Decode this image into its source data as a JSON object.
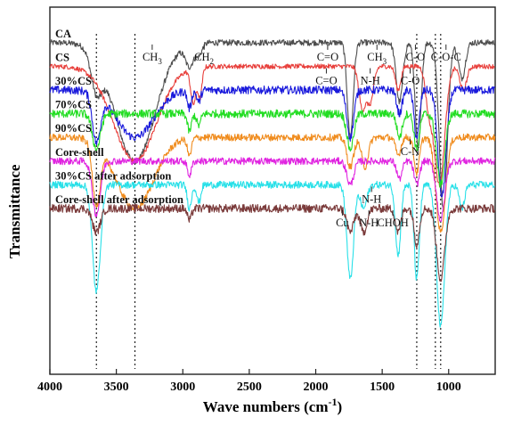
{
  "chart_data": {
    "type": "line",
    "xlabel": "Wave numbers (cm",
    "xlabel_sup": "-1",
    "xlabel_end": ")",
    "ylabel": "Transmittance",
    "xlim": [
      4000,
      650
    ],
    "x_reversed": true,
    "x_ticks": [
      4000,
      3500,
      3000,
      2500,
      2000,
      1500,
      1000
    ],
    "y_ticks_shown": false,
    "reference_lines": [
      3650,
      3360,
      1240,
      1100,
      1060
    ],
    "series": [
      {
        "name": "CA",
        "color": "#4d4d4d",
        "baseline": 11.0,
        "noise": 0.25,
        "bands": [
          [
            3650,
            -3.0,
            40
          ],
          [
            3360,
            -10.0,
            150
          ],
          [
            2950,
            -1.8,
            30
          ],
          [
            2880,
            -1.0,
            25
          ],
          [
            1740,
            -8.0,
            22
          ],
          [
            1370,
            -5.0,
            25
          ],
          [
            1230,
            -9.0,
            22
          ],
          [
            1040,
            -14.0,
            30
          ],
          [
            900,
            -3.0,
            25
          ]
        ]
      },
      {
        "name": "CS",
        "color": "#e8403c",
        "baseline": 9.0,
        "noise": 0.2,
        "bands": [
          [
            3360,
            -8.0,
            160
          ],
          [
            2920,
            -3.0,
            20
          ],
          [
            2870,
            -2.5,
            15
          ],
          [
            1650,
            -3.5,
            25
          ],
          [
            1590,
            -3.0,
            25
          ],
          [
            1380,
            -2.0,
            20
          ],
          [
            1150,
            -3.0,
            25
          ],
          [
            1070,
            -10.0,
            40
          ],
          [
            890,
            -2.0,
            25
          ]
        ]
      },
      {
        "name": "30%CS",
        "color": "#1a1adc",
        "baseline": 7.0,
        "noise": 0.35,
        "bands": [
          [
            3650,
            -4.0,
            30
          ],
          [
            3360,
            -4.0,
            140
          ],
          [
            2950,
            -1.5,
            15
          ],
          [
            2880,
            -1.0,
            15
          ],
          [
            1740,
            -4.0,
            25
          ],
          [
            1370,
            -2.0,
            20
          ],
          [
            1240,
            -4.0,
            20
          ],
          [
            1050,
            -9.0,
            30
          ]
        ]
      },
      {
        "name": "70%CS",
        "color": "#22dd22",
        "baseline": 5.0,
        "noise": 0.35,
        "bands": [
          [
            3650,
            -3.0,
            30
          ],
          [
            2950,
            -1.5,
            15
          ],
          [
            2880,
            -1.0,
            15
          ],
          [
            1740,
            -3.0,
            25
          ],
          [
            1370,
            -2.0,
            20
          ],
          [
            1240,
            -3.0,
            20
          ],
          [
            1060,
            -6.0,
            30
          ]
        ]
      },
      {
        "name": "90%CS",
        "color": "#f08c1e",
        "baseline": 3.0,
        "noise": 0.3,
        "bands": [
          [
            3650,
            -5.0,
            30
          ],
          [
            3360,
            -6.0,
            140
          ],
          [
            2950,
            -1.5,
            15
          ],
          [
            1740,
            -2.5,
            25
          ],
          [
            1630,
            -2.5,
            25
          ],
          [
            1380,
            -1.5,
            20
          ],
          [
            1240,
            -3.0,
            20
          ],
          [
            1060,
            -8.0,
            35
          ]
        ]
      },
      {
        "name": "Core-shell",
        "color": "#e024e0",
        "baseline": 1.0,
        "noise": 0.3,
        "bands": [
          [
            3650,
            -4.5,
            30
          ],
          [
            2950,
            -1.2,
            15
          ],
          [
            1740,
            -2.0,
            25
          ],
          [
            1370,
            -1.5,
            20
          ],
          [
            1240,
            -2.0,
            20
          ],
          [
            1060,
            -5.0,
            30
          ]
        ]
      },
      {
        "name": "30%CS after adsorption",
        "color": "#28e0e8",
        "baseline": -1.0,
        "noise": 0.3,
        "bands": [
          [
            3650,
            -9.0,
            30
          ],
          [
            2950,
            -2.0,
            15
          ],
          [
            2880,
            -1.5,
            15
          ],
          [
            1740,
            -8.0,
            25
          ],
          [
            1640,
            -2.0,
            25
          ],
          [
            1380,
            -6.0,
            20
          ],
          [
            1240,
            -8.0,
            20
          ],
          [
            1060,
            -12.0,
            30
          ],
          [
            900,
            -2.0,
            20
          ]
        ]
      },
      {
        "name": "Core-shell after adsorption",
        "color": "#7a3a3a",
        "baseline": -3.0,
        "noise": 0.35,
        "bands": [
          [
            3650,
            -2.0,
            30
          ],
          [
            2950,
            -1.0,
            15
          ],
          [
            1740,
            -2.0,
            25
          ],
          [
            1640,
            -2.0,
            25
          ],
          [
            1380,
            -2.0,
            20
          ],
          [
            1240,
            -3.0,
            20
          ],
          [
            1060,
            -6.0,
            30
          ]
        ]
      }
    ],
    "annotations": [
      {
        "text": "CH",
        "sub": "3",
        "x": 3230,
        "series": "CA"
      },
      {
        "text": "CH",
        "sub": "2",
        "x": 2840,
        "series": "CA"
      },
      {
        "text": "C=O",
        "sub": "",
        "x": 1910,
        "series": "CA"
      },
      {
        "text": "CH",
        "sub": "3",
        "x": 1540,
        "series": "CA"
      },
      {
        "text": "C-O",
        "sub": "",
        "x": 1250,
        "series": "CA"
      },
      {
        "text": "C-O-C",
        "sub": "",
        "x": 1020,
        "series": "CA"
      },
      {
        "text": "C=O",
        "sub": "",
        "x": 1920,
        "series": "CS"
      },
      {
        "text": "N-H",
        "sub": "",
        "x": 1590,
        "series": "CS"
      },
      {
        "text": "C-O",
        "sub": "",
        "x": 1290,
        "series": "CS"
      },
      {
        "text": "C-N",
        "sub": "",
        "x": 1290,
        "series": "90%CS"
      },
      {
        "text": "N-H",
        "sub": "",
        "x": 1580,
        "series": "30%CS after adsorption"
      },
      {
        "text": "Cu",
        "sub": "",
        "x": 1800,
        "series": "Core-shell after adsorption"
      },
      {
        "text": "N-H",
        "sub": "",
        "x": 1600,
        "series": "Core-shell after adsorption"
      },
      {
        "text": "CHOH",
        "sub": "",
        "x": 1420,
        "series": "Core-shell after adsorption"
      }
    ]
  }
}
